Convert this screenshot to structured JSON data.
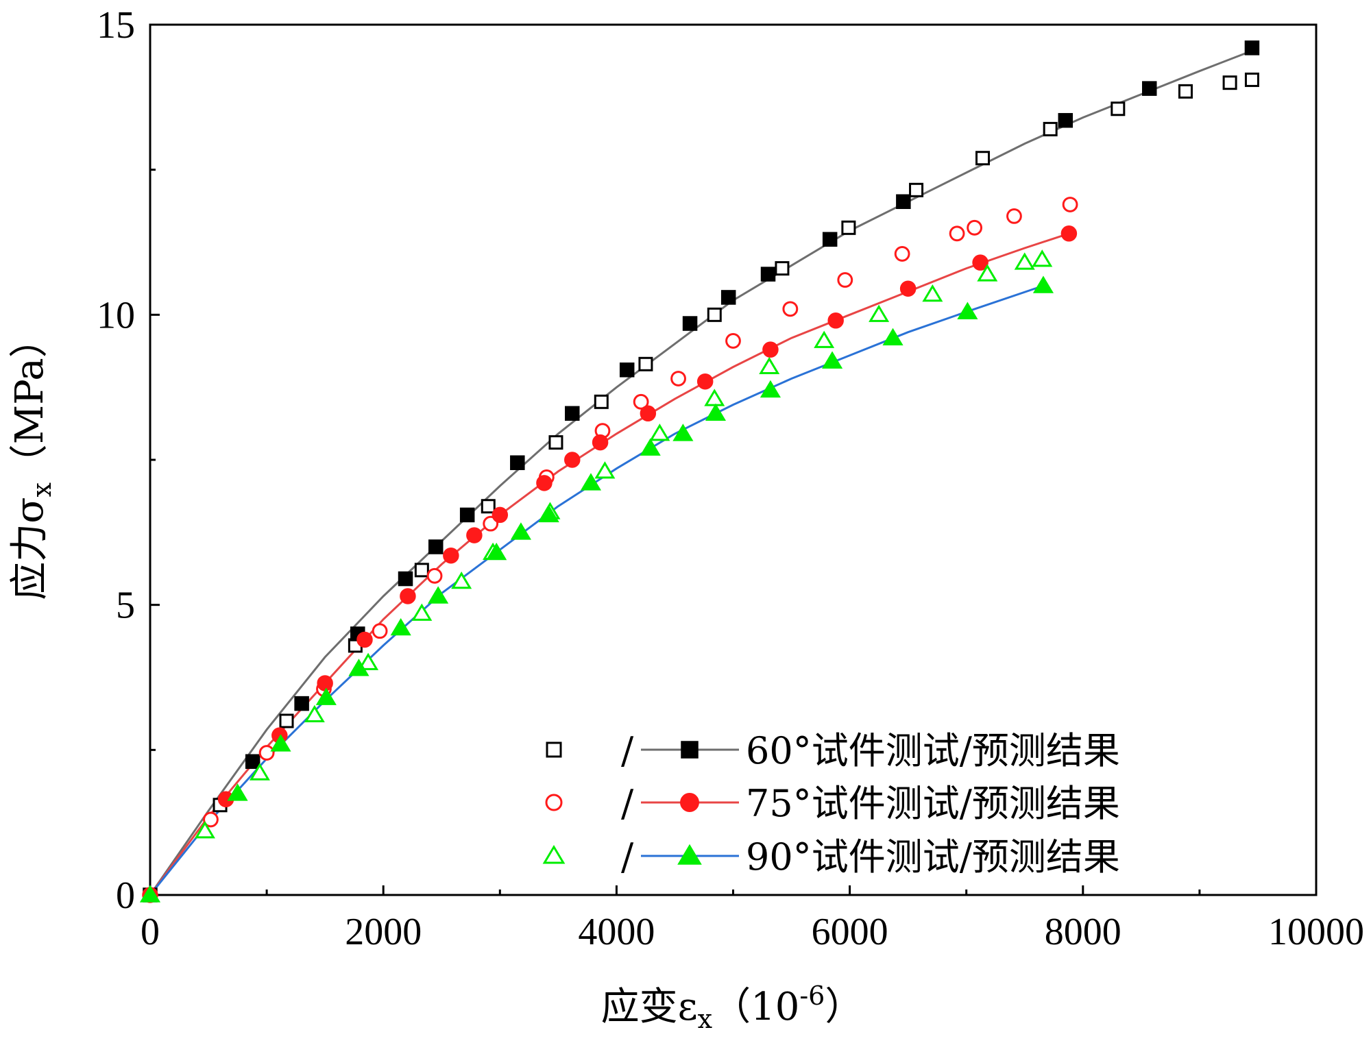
{
  "chart_data": {
    "type": "scatter",
    "xlabel": {
      "main": "应变ε",
      "sub": "x",
      "open": "（10",
      "sup": "-6",
      "close": "）"
    },
    "ylabel": {
      "main": "应力σ",
      "sub": "x",
      "rest": "（MPa）"
    },
    "xlim": [
      0,
      10000
    ],
    "ylim": [
      0,
      15
    ],
    "xticks": [
      0,
      2000,
      4000,
      6000,
      8000,
      10000
    ],
    "yticks": [
      0,
      5,
      10,
      15
    ],
    "grid": false,
    "legend_position": "bottom-right",
    "series": [
      {
        "name": "60°试件测试/预测结果",
        "color": "#000000",
        "line_color": "#6e6e6e",
        "marker": "square",
        "test": [
          [
            600,
            1.55
          ],
          [
            1170,
            3.0
          ],
          [
            1760,
            4.3
          ],
          [
            2330,
            5.6
          ],
          [
            2900,
            6.7
          ],
          [
            3480,
            7.8
          ],
          [
            3870,
            8.5
          ],
          [
            4250,
            9.15
          ],
          [
            4840,
            10.0
          ],
          [
            5420,
            10.8
          ],
          [
            5990,
            11.5
          ],
          [
            6570,
            12.15
          ],
          [
            7140,
            12.7
          ],
          [
            7720,
            13.2
          ],
          [
            8300,
            13.55
          ],
          [
            8880,
            13.85
          ],
          [
            9260,
            14.0
          ],
          [
            9450,
            14.05
          ]
        ],
        "predicted": [
          [
            0,
            0
          ],
          [
            880,
            2.3
          ],
          [
            1300,
            3.3
          ],
          [
            1780,
            4.5
          ],
          [
            2190,
            5.45
          ],
          [
            2450,
            6.0
          ],
          [
            2720,
            6.55
          ],
          [
            3150,
            7.45
          ],
          [
            3620,
            8.3
          ],
          [
            4090,
            9.05
          ],
          [
            4630,
            9.85
          ],
          [
            4960,
            10.3
          ],
          [
            5300,
            10.7
          ],
          [
            5830,
            11.3
          ],
          [
            6460,
            11.95
          ],
          [
            7850,
            13.35
          ],
          [
            8570,
            13.9
          ],
          [
            9450,
            14.6
          ]
        ],
        "curve": [
          [
            0,
            0
          ],
          [
            500,
            1.45
          ],
          [
            1000,
            2.85
          ],
          [
            1500,
            4.1
          ],
          [
            2000,
            5.15
          ],
          [
            2500,
            6.1
          ],
          [
            3000,
            7.05
          ],
          [
            3500,
            7.95
          ],
          [
            4000,
            8.75
          ],
          [
            4500,
            9.5
          ],
          [
            5000,
            10.25
          ],
          [
            5500,
            10.85
          ],
          [
            6000,
            11.45
          ],
          [
            6500,
            11.95
          ],
          [
            7000,
            12.45
          ],
          [
            7500,
            12.95
          ],
          [
            8000,
            13.4
          ],
          [
            8500,
            13.8
          ],
          [
            9000,
            14.2
          ],
          [
            9450,
            14.55
          ]
        ]
      },
      {
        "name": "75°试件测试/预测结果",
        "color": "#ff1a1a",
        "line_color": "#e84545",
        "marker": "circle",
        "test": [
          [
            520,
            1.3
          ],
          [
            1000,
            2.45
          ],
          [
            1490,
            3.55
          ],
          [
            1970,
            4.55
          ],
          [
            2440,
            5.5
          ],
          [
            2920,
            6.4
          ],
          [
            3400,
            7.2
          ],
          [
            3880,
            8.0
          ],
          [
            4210,
            8.5
          ],
          [
            4530,
            8.9
          ],
          [
            5000,
            9.55
          ],
          [
            5490,
            10.1
          ],
          [
            5960,
            10.6
          ],
          [
            6450,
            11.05
          ],
          [
            6920,
            11.4
          ],
          [
            7070,
            11.5
          ],
          [
            7410,
            11.7
          ],
          [
            7890,
            11.9
          ]
        ],
        "predicted": [
          [
            0,
            0
          ],
          [
            650,
            1.65
          ],
          [
            1110,
            2.75
          ],
          [
            1500,
            3.65
          ],
          [
            1840,
            4.4
          ],
          [
            2210,
            5.15
          ],
          [
            2580,
            5.85
          ],
          [
            2780,
            6.2
          ],
          [
            3000,
            6.55
          ],
          [
            3380,
            7.1
          ],
          [
            3620,
            7.5
          ],
          [
            3860,
            7.8
          ],
          [
            4270,
            8.3
          ],
          [
            4760,
            8.85
          ],
          [
            5320,
            9.4
          ],
          [
            5880,
            9.9
          ],
          [
            6500,
            10.45
          ],
          [
            7120,
            10.9
          ],
          [
            7880,
            11.4
          ]
        ],
        "curve": [
          [
            0,
            0
          ],
          [
            500,
            1.35
          ],
          [
            1000,
            2.55
          ],
          [
            1500,
            3.65
          ],
          [
            2000,
            4.75
          ],
          [
            2500,
            5.7
          ],
          [
            3000,
            6.55
          ],
          [
            3500,
            7.3
          ],
          [
            4000,
            7.95
          ],
          [
            4500,
            8.55
          ],
          [
            5000,
            9.1
          ],
          [
            5500,
            9.6
          ],
          [
            6000,
            10.0
          ],
          [
            6500,
            10.4
          ],
          [
            7000,
            10.8
          ],
          [
            7500,
            11.15
          ],
          [
            7880,
            11.4
          ]
        ]
      },
      {
        "name": "90°试件测试/预测结果",
        "color": "#00ee00",
        "line_color": "#2a72d6",
        "marker": "triangle",
        "test": [
          [
            470,
            1.1
          ],
          [
            940,
            2.1
          ],
          [
            1410,
            3.1
          ],
          [
            1870,
            4.0
          ],
          [
            2330,
            4.85
          ],
          [
            2670,
            5.4
          ],
          [
            2940,
            5.9
          ],
          [
            3430,
            6.6
          ],
          [
            3900,
            7.3
          ],
          [
            4370,
            7.95
          ],
          [
            4840,
            8.55
          ],
          [
            5310,
            9.1
          ],
          [
            5780,
            9.55
          ],
          [
            6250,
            10.0
          ],
          [
            6710,
            10.35
          ],
          [
            7180,
            10.7
          ],
          [
            7500,
            10.9
          ],
          [
            7650,
            10.95
          ]
        ],
        "predicted": [
          [
            0,
            0
          ],
          [
            750,
            1.75
          ],
          [
            1120,
            2.6
          ],
          [
            1510,
            3.4
          ],
          [
            1790,
            3.9
          ],
          [
            2150,
            4.6
          ],
          [
            2470,
            5.15
          ],
          [
            2970,
            5.9
          ],
          [
            3180,
            6.25
          ],
          [
            3420,
            6.55
          ],
          [
            3780,
            7.1
          ],
          [
            4290,
            7.7
          ],
          [
            4570,
            7.95
          ],
          [
            4850,
            8.3
          ],
          [
            5320,
            8.7
          ],
          [
            5850,
            9.2
          ],
          [
            6370,
            9.6
          ],
          [
            7010,
            10.05
          ],
          [
            7660,
            10.5
          ]
        ],
        "curve": [
          [
            0,
            0
          ],
          [
            500,
            1.25
          ],
          [
            1000,
            2.35
          ],
          [
            1500,
            3.35
          ],
          [
            2000,
            4.3
          ],
          [
            2500,
            5.2
          ],
          [
            3000,
            5.95
          ],
          [
            3500,
            6.7
          ],
          [
            4000,
            7.35
          ],
          [
            4500,
            7.95
          ],
          [
            5000,
            8.45
          ],
          [
            5500,
            8.9
          ],
          [
            6000,
            9.3
          ],
          [
            6500,
            9.7
          ],
          [
            7000,
            10.05
          ],
          [
            7660,
            10.5
          ]
        ]
      }
    ]
  }
}
